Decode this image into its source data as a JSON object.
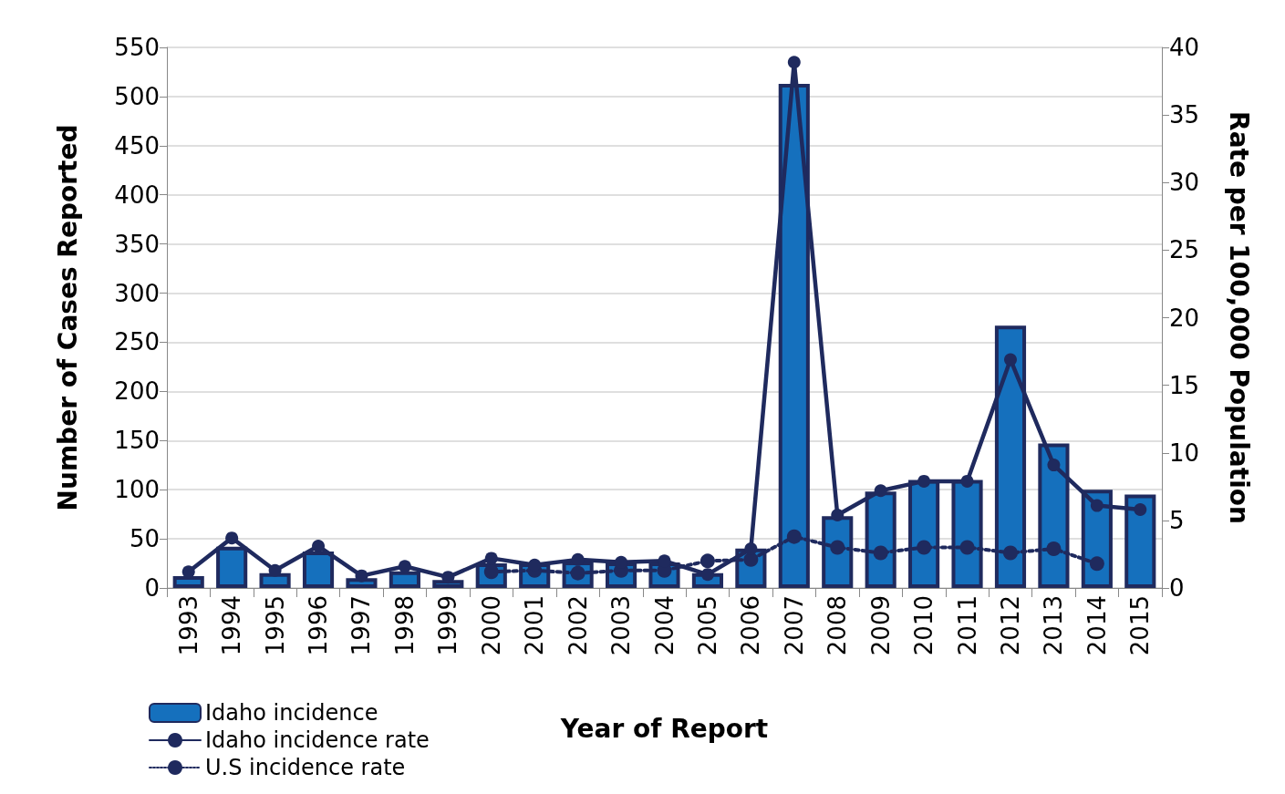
{
  "chart_data": {
    "type": "bar",
    "xlabel": "Year of Report",
    "ylabel": "Number of Cases Reported",
    "y2label": "Rate per 100,000 Population",
    "categories": [
      "1993",
      "1994",
      "1995",
      "1996",
      "1997",
      "1998",
      "1999",
      "2000",
      "2001",
      "2002",
      "2003",
      "2004",
      "2005",
      "2006",
      "2007",
      "2008",
      "2009",
      "2010",
      "2011",
      "2012",
      "2013",
      "2014",
      "2015"
    ],
    "series": [
      {
        "name": "Idaho incidence",
        "color": "#1570bd",
        "values": [
          12,
          42,
          15,
          37,
          10,
          17,
          8,
          25,
          25,
          27,
          26,
          26,
          15,
          40,
          513,
          73,
          98,
          110,
          110,
          267,
          147,
          100,
          95
        ]
      },
      {
        "name": "Idaho incidence rate",
        "type": "line",
        "axis": "y2",
        "color": "#1f2a5e",
        "line_style": "solid",
        "values": [
          1.2,
          3.7,
          1.3,
          3.1,
          0.9,
          1.6,
          0.8,
          2.2,
          1.7,
          2.1,
          1.9,
          2.0,
          1.0,
          2.9,
          38.9,
          5.4,
          7.2,
          7.9,
          7.9,
          16.9,
          9.1,
          6.1,
          5.8
        ]
      },
      {
        "name": "U.S incidence rate",
        "type": "line",
        "axis": "y2",
        "color": "#1f2a5e",
        "line_style": "dotted",
        "values": [
          null,
          null,
          null,
          null,
          null,
          null,
          null,
          1.2,
          1.3,
          1.1,
          1.3,
          1.3,
          2.0,
          2.1,
          3.8,
          3.0,
          2.6,
          3.0,
          3.0,
          2.6,
          2.9,
          1.8,
          null
        ]
      }
    ],
    "ylim": [
      0,
      550
    ],
    "yticks": [
      0,
      50,
      100,
      150,
      200,
      250,
      300,
      350,
      400,
      450,
      500,
      550
    ],
    "y2lim": [
      0,
      40
    ],
    "y2ticks": [
      0,
      5,
      10,
      15,
      20,
      25,
      30,
      35,
      40
    ],
    "grid": "y",
    "legend": "bottom left",
    "marker": "circle"
  }
}
